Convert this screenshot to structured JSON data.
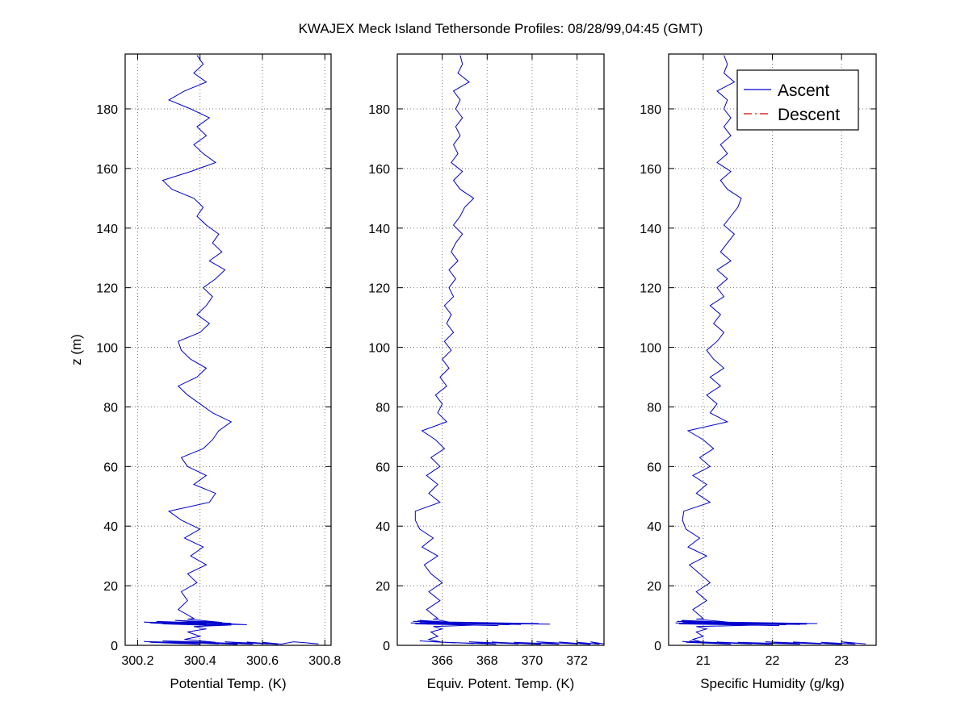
{
  "title": "KWAJEX Meck Island Tethersonde Profiles: 08/28/99,04:45 (GMT)",
  "colors": {
    "ascent": "#0000cc",
    "descent": "#dd0000",
    "grid": "#777777",
    "axis": "#000000",
    "background": "#ffffff"
  },
  "legend": {
    "entries": [
      {
        "label": "Ascent",
        "color": "#0000cc",
        "style": "solid"
      },
      {
        "label": "Descent",
        "color": "#dd0000",
        "style": "dashdot"
      }
    ]
  },
  "chart_data": [
    {
      "type": "line",
      "xlabel": "Potential Temp. (K)",
      "ylabel": "z (m)",
      "xlim": [
        300.16,
        300.82
      ],
      "ylim": [
        0,
        198.4
      ],
      "xticks": [
        300.2,
        300.4,
        300.6,
        300.8
      ],
      "xtick_labels": [
        "300.2",
        "300.4",
        "300.6",
        "300.8"
      ],
      "yticks": [
        0,
        20,
        40,
        60,
        80,
        100,
        120,
        140,
        160,
        180
      ],
      "grid": "dotted",
      "legend": false,
      "series": [
        {
          "name": "Ascent",
          "color": "#0000cc",
          "style": "solid",
          "x": [
            300.78,
            300.7,
            300.66,
            300.6,
            300.65,
            300.55,
            300.62,
            300.48,
            300.57,
            300.42,
            300.52,
            300.36,
            300.46,
            300.3,
            300.4,
            300.24,
            300.34,
            300.22,
            300.38,
            300.28,
            300.45,
            300.35,
            300.4,
            300.36,
            300.42,
            300.38,
            300.5,
            300.28,
            300.46,
            300.24,
            300.42,
            300.22,
            300.48,
            300.26,
            300.52,
            300.3,
            300.55,
            300.34,
            300.5,
            300.27,
            300.44,
            300.32,
            300.47,
            300.36,
            300.38,
            300.33,
            300.36,
            300.34,
            300.39,
            300.36,
            300.42,
            300.37,
            300.41,
            300.35,
            300.4,
            300.34,
            300.3,
            300.43,
            300.45,
            300.38,
            300.42,
            300.36,
            300.34,
            300.41,
            300.44,
            300.46,
            300.5,
            300.44,
            300.4,
            300.36,
            300.33,
            300.39,
            300.42,
            300.37,
            300.34,
            300.33,
            300.4,
            300.43,
            300.39,
            300.42,
            300.44,
            300.41,
            300.45,
            300.48,
            300.43,
            300.47,
            300.44,
            300.46,
            300.42,
            300.39,
            300.41,
            300.38,
            300.31,
            300.28,
            300.37,
            300.45,
            300.41,
            300.38,
            300.42,
            300.39,
            300.43,
            300.37,
            300.3,
            300.35,
            300.42,
            300.38,
            300.41,
            300.39
          ],
          "z": [
            0.5,
            1.2,
            0.4,
            1.0,
            0.3,
            1.1,
            0.5,
            1.2,
            0.4,
            1.0,
            0.3,
            1.1,
            0.5,
            1.2,
            0.4,
            1.0,
            0.6,
            1.3,
            0.8,
            1.5,
            1.0,
            2.0,
            3.0,
            4.5,
            5.5,
            6.3,
            6.8,
            7.2,
            6.6,
            7.5,
            7.0,
            7.8,
            7.3,
            8.0,
            7.1,
            7.6,
            6.9,
            8.2,
            7.4,
            7.9,
            7.2,
            8.4,
            7.7,
            8.8,
            9,
            12,
            15,
            18,
            21,
            24,
            27,
            30,
            33,
            36,
            39,
            42,
            45,
            48,
            51,
            54,
            57,
            60,
            63,
            66,
            69,
            72,
            75,
            78,
            81,
            84,
            87,
            90,
            93,
            96,
            99,
            102,
            105,
            108,
            111,
            114,
            117,
            120,
            123,
            126,
            129,
            132,
            135,
            138,
            141,
            144,
            147,
            150,
            153,
            156,
            159,
            162,
            165,
            168,
            171,
            174,
            177,
            180,
            183,
            186,
            189,
            192,
            195,
            198
          ]
        },
        {
          "name": "Descent",
          "color": "#dd0000",
          "style": "dashdot",
          "x": [],
          "z": []
        }
      ]
    },
    {
      "type": "line",
      "xlabel": "Equiv. Potent. Temp. (K)",
      "ylabel": "",
      "xlim": [
        364.0,
        373.2
      ],
      "ylim": [
        0,
        198.4
      ],
      "xticks": [
        366,
        368,
        370,
        372
      ],
      "xtick_labels": [
        "366",
        "368",
        "370",
        "372"
      ],
      "yticks": [
        0,
        20,
        40,
        60,
        80,
        100,
        120,
        140,
        160,
        180
      ],
      "grid": "dotted",
      "legend": false,
      "series": [
        {
          "name": "Ascent",
          "color": "#0000cc",
          "style": "solid",
          "x": [
            373.2,
            372.6,
            373.0,
            372.0,
            372.6,
            371.2,
            372.0,
            370.2,
            371.2,
            369.2,
            370.4,
            368.2,
            369.4,
            367.2,
            368.4,
            366.2,
            367.4,
            365.4,
            366.6,
            365.0,
            366.0,
            365.4,
            365.8,
            365.5,
            366.0,
            365.6,
            367.5,
            364.8,
            368.5,
            364.6,
            369.5,
            365.0,
            370.3,
            364.7,
            370.8,
            365.2,
            369.0,
            364.9,
            367.8,
            365.3,
            366.8,
            365.0,
            366.4,
            365.6,
            365.8,
            365.3,
            365.9,
            365.4,
            366.0,
            365.5,
            365.2,
            365.8,
            365.1,
            365.6,
            365.0,
            364.8,
            364.8,
            365.9,
            365.4,
            365.8,
            365.3,
            365.9,
            365.5,
            366.1,
            365.7,
            365.1,
            366.2,
            365.8,
            366.0,
            365.7,
            366.2,
            365.9,
            366.3,
            366.0,
            366.4,
            366.1,
            366.5,
            366.2,
            366.4,
            366.1,
            366.5,
            366.3,
            366.6,
            366.3,
            366.7,
            366.4,
            366.6,
            366.9,
            366.5,
            366.8,
            367.0,
            367.4,
            366.8,
            366.5,
            366.9,
            366.4,
            366.7,
            366.5,
            366.8,
            366.6,
            366.9,
            366.6,
            366.8,
            366.5,
            367.2,
            366.7,
            366.9,
            366.8
          ],
          "z": [
            0.5,
            1.2,
            0.4,
            1.0,
            0.3,
            1.1,
            0.5,
            1.2,
            0.4,
            1.0,
            0.3,
            1.1,
            0.5,
            1.2,
            0.4,
            1.0,
            0.6,
            1.3,
            0.8,
            1.5,
            1.0,
            2.0,
            3.0,
            4.5,
            5.5,
            6.3,
            6.8,
            7.2,
            6.6,
            7.5,
            7.0,
            7.8,
            7.3,
            8.0,
            7.1,
            7.6,
            6.9,
            8.2,
            7.4,
            7.9,
            7.2,
            8.4,
            7.7,
            8.8,
            9,
            12,
            15,
            18,
            21,
            24,
            27,
            30,
            33,
            36,
            39,
            42,
            45,
            48,
            51,
            54,
            57,
            60,
            63,
            66,
            69,
            72,
            75,
            78,
            81,
            84,
            87,
            90,
            93,
            96,
            99,
            102,
            105,
            108,
            111,
            114,
            117,
            120,
            123,
            126,
            129,
            132,
            135,
            138,
            141,
            144,
            147,
            150,
            153,
            156,
            159,
            162,
            165,
            168,
            171,
            174,
            177,
            180,
            183,
            186,
            189,
            192,
            195,
            198
          ]
        },
        {
          "name": "Descent",
          "color": "#dd0000",
          "style": "dashdot",
          "x": [],
          "z": []
        }
      ]
    },
    {
      "type": "line",
      "xlabel": "Specific Humidity (g/kg)",
      "ylabel": "",
      "xlim": [
        20.5,
        23.5
      ],
      "ylim": [
        0,
        198.4
      ],
      "xticks": [
        21,
        22,
        23
      ],
      "xtick_labels": [
        "21",
        "22",
        "23"
      ],
      "yticks": [
        0,
        20,
        40,
        60,
        80,
        100,
        120,
        140,
        160,
        180
      ],
      "grid": "dotted",
      "legend": true,
      "series": [
        {
          "name": "Ascent",
          "color": "#0000cc",
          "style": "solid",
          "x": [
            23.35,
            23.0,
            23.2,
            22.7,
            23.0,
            22.3,
            22.7,
            21.9,
            22.4,
            21.5,
            22.0,
            21.2,
            21.7,
            20.9,
            21.4,
            20.75,
            21.2,
            20.7,
            21.1,
            20.8,
            21.0,
            20.85,
            21.0,
            20.9,
            21.05,
            20.9,
            21.8,
            20.65,
            22.1,
            20.6,
            22.4,
            20.7,
            22.65,
            20.62,
            22.5,
            20.72,
            22.2,
            20.68,
            21.9,
            20.75,
            21.6,
            20.7,
            21.4,
            20.9,
            21.0,
            20.85,
            21.05,
            20.9,
            21.1,
            20.95,
            20.8,
            21.05,
            20.78,
            20.95,
            20.75,
            20.7,
            20.72,
            21.1,
            20.9,
            21.05,
            20.85,
            21.1,
            20.95,
            21.15,
            21.0,
            20.78,
            21.35,
            21.1,
            21.2,
            21.05,
            21.25,
            21.1,
            21.3,
            21.15,
            21.05,
            21.2,
            21.3,
            21.15,
            21.25,
            21.1,
            21.3,
            21.2,
            21.35,
            21.2,
            21.4,
            21.25,
            21.35,
            21.45,
            21.3,
            21.4,
            21.5,
            21.55,
            21.35,
            21.25,
            21.4,
            21.2,
            21.35,
            21.25,
            21.4,
            21.3,
            21.4,
            21.3,
            21.35,
            21.2,
            21.45,
            21.3,
            21.35,
            21.3
          ],
          "z": [
            0.5,
            1.2,
            0.4,
            1.0,
            0.3,
            1.1,
            0.5,
            1.2,
            0.4,
            1.0,
            0.3,
            1.1,
            0.5,
            1.2,
            0.4,
            1.0,
            0.6,
            1.3,
            0.8,
            1.5,
            1.0,
            2.0,
            3.0,
            4.5,
            5.5,
            6.3,
            6.8,
            7.2,
            6.6,
            7.5,
            7.0,
            7.8,
            7.3,
            8.0,
            7.1,
            7.6,
            6.9,
            8.2,
            7.4,
            7.9,
            7.2,
            8.4,
            7.7,
            8.8,
            9,
            12,
            15,
            18,
            21,
            24,
            27,
            30,
            33,
            36,
            39,
            42,
            45,
            48,
            51,
            54,
            57,
            60,
            63,
            66,
            69,
            72,
            75,
            78,
            81,
            84,
            87,
            90,
            93,
            96,
            99,
            102,
            105,
            108,
            111,
            114,
            117,
            120,
            123,
            126,
            129,
            132,
            135,
            138,
            141,
            144,
            147,
            150,
            153,
            156,
            159,
            162,
            165,
            168,
            171,
            174,
            177,
            180,
            183,
            186,
            189,
            192,
            195,
            198
          ]
        },
        {
          "name": "Descent",
          "color": "#dd0000",
          "style": "dashdot",
          "x": [],
          "z": []
        }
      ]
    }
  ]
}
